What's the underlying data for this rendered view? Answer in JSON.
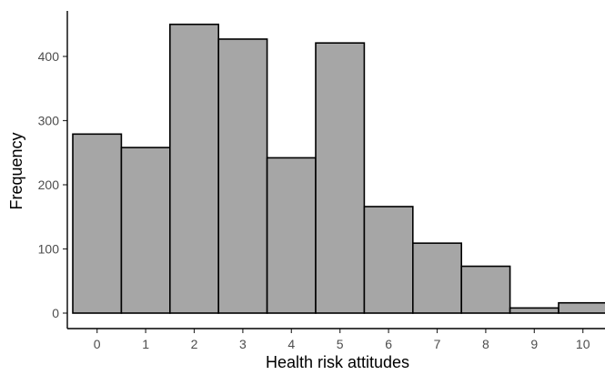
{
  "chart_data": {
    "type": "bar",
    "categories": [
      "0",
      "1",
      "2",
      "3",
      "4",
      "5",
      "6",
      "7",
      "8",
      "9",
      "10"
    ],
    "values": [
      279,
      258,
      450,
      427,
      242,
      421,
      166,
      109,
      73,
      8,
      16
    ],
    "xlabel": "Health risk attitudes",
    "ylabel": "Frequency",
    "ylim": [
      0,
      475
    ],
    "yticks": [
      "0",
      "100",
      "200",
      "300",
      "400"
    ],
    "grid": false,
    "colors": {
      "bar_fill": "#a6a6a6",
      "bar_stroke": "#000000"
    }
  }
}
